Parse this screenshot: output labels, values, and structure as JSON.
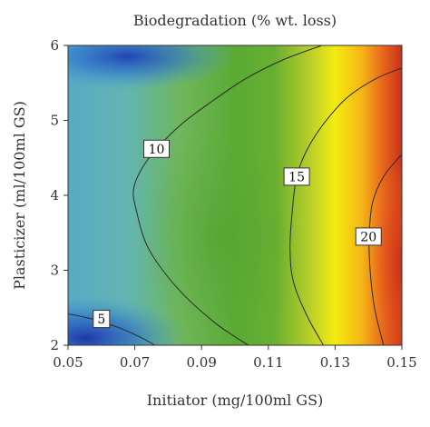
{
  "chart_data": {
    "type": "heatmap",
    "subtype": "contour",
    "title": "Biodegradation (% wt. loss)",
    "xlabel": "Initiator (mg/100ml GS)",
    "ylabel": "Plasticizer (ml/100ml GS)",
    "xlim": [
      0.05,
      0.15
    ],
    "ylim": [
      2,
      6
    ],
    "x_ticks": [
      "0.05",
      "0.07",
      "0.09",
      "0.11",
      "0.13",
      "0.15"
    ],
    "y_ticks": [
      "2",
      "3",
      "4",
      "5",
      "6"
    ],
    "colorscale": [
      "#1f3fb0",
      "#2c7fd6",
      "#5fb7c4",
      "#72b84a",
      "#58a832",
      "#b7cf27",
      "#f6ee10",
      "#f6a313",
      "#e7531d",
      "#c4281c"
    ],
    "contours": [
      {
        "label": "5",
        "label_at": [
          0.06,
          2.35
        ],
        "points": [
          [
            0.05,
            2.42
          ],
          [
            0.058,
            2.34
          ],
          [
            0.066,
            2.22
          ],
          [
            0.072,
            2.1
          ],
          [
            0.076,
            2.0
          ]
        ]
      },
      {
        "label": "10",
        "label_at": [
          0.0765,
          4.62
        ],
        "points": [
          [
            0.104,
            2.0
          ],
          [
            0.094,
            2.3
          ],
          [
            0.083,
            2.75
          ],
          [
            0.074,
            3.3
          ],
          [
            0.0702,
            3.85
          ],
          [
            0.0697,
            4.1
          ],
          [
            0.072,
            4.35
          ],
          [
            0.0765,
            4.62
          ],
          [
            0.084,
            4.95
          ],
          [
            0.093,
            5.25
          ],
          [
            0.103,
            5.55
          ],
          [
            0.114,
            5.8
          ],
          [
            0.126,
            6.0
          ]
        ]
      },
      {
        "label": "15",
        "label_at": [
          0.1185,
          4.25
        ],
        "points": [
          [
            0.1265,
            2.0
          ],
          [
            0.1215,
            2.4
          ],
          [
            0.1175,
            2.85
          ],
          [
            0.1165,
            3.3
          ],
          [
            0.1172,
            3.8
          ],
          [
            0.1185,
            4.25
          ],
          [
            0.1215,
            4.6
          ],
          [
            0.1265,
            4.95
          ],
          [
            0.1335,
            5.3
          ],
          [
            0.142,
            5.55
          ],
          [
            0.15,
            5.7
          ]
        ]
      },
      {
        "label": "20",
        "label_at": [
          0.14,
          3.45
        ],
        "points": [
          [
            0.1445,
            2.0
          ],
          [
            0.1418,
            2.5
          ],
          [
            0.1405,
            3.0
          ],
          [
            0.1402,
            3.45
          ],
          [
            0.1412,
            3.9
          ],
          [
            0.1445,
            4.25
          ],
          [
            0.15,
            4.55
          ]
        ]
      }
    ]
  }
}
